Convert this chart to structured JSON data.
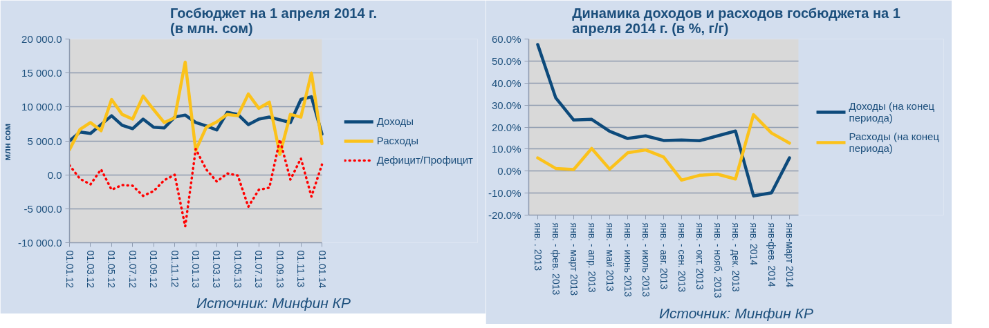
{
  "chart_data": [
    {
      "type": "line",
      "title": "Госбюджет на 1 апреля 2014 г. (в млн. сом)",
      "ylabel": "млн  сом",
      "categories": [
        "01.01.12",
        null,
        "01.03.12",
        null,
        "01.05.12",
        null,
        "01.07.12",
        null,
        "01.09.12",
        null,
        "01.11.12",
        null,
        "01.01.13",
        null,
        "01.03.13",
        null,
        "01.05.13",
        null,
        "01.07.13",
        null,
        "01.09.13",
        null,
        "01.11.13",
        null,
        "01.01.14"
      ],
      "ylim": [
        -10000,
        20000
      ],
      "yticks": [
        {
          "value": -10000,
          "label": "-10 000.0"
        },
        {
          "value": -5000,
          "label": "-5 000.0"
        },
        {
          "value": 0,
          "label": "0.0"
        },
        {
          "value": 5000,
          "label": "5 000.0"
        },
        {
          "value": 10000,
          "label": "10 000.0"
        },
        {
          "value": 15000,
          "label": "15 000.0"
        },
        {
          "value": 20000,
          "label": "20 000.0"
        }
      ],
      "grid": "y",
      "legend": "right",
      "series": [
        {
          "name": "Доходы",
          "color": "#0d4a7b",
          "values": [
            5000,
            6300,
            6100,
            7400,
            8700,
            7300,
            6800,
            8200,
            7000,
            6900,
            8500,
            8800,
            7700,
            7200,
            6600,
            9200,
            8900,
            7400,
            8200,
            8500,
            8100,
            7700,
            11100,
            11500,
            6000
          ]
        },
        {
          "name": "Расходы",
          "color": "#fbc21b",
          "values": [
            3700,
            6700,
            7700,
            6500,
            11100,
            8900,
            8200,
            11600,
            9600,
            7700,
            8400,
            16600,
            3600,
            7000,
            7800,
            8900,
            8700,
            11900,
            9800,
            10700,
            3000,
            8900,
            8500,
            15000,
            4600
          ]
        },
        {
          "name": "Дефицит/Профицит",
          "color": "#ff0000",
          "line_style": "dotted",
          "values": [
            1400,
            -600,
            -1400,
            800,
            -2200,
            -1500,
            -1600,
            -3100,
            -2400,
            -800,
            0,
            -7600,
            3800,
            800,
            -1000,
            200,
            -100,
            -4700,
            -2200,
            -1900,
            5200,
            -700,
            2400,
            -3200,
            1500
          ]
        }
      ],
      "annotations": [
        "Источник: Минфин КР"
      ]
    },
    {
      "type": "line",
      "title": "Динамика доходов и расходов госбюджета на 1 апреля 2014 г. (в %, г/г)",
      "categories": [
        "янв. . 2013",
        "янв. - фев. 2013",
        "янв. - март 2013",
        "янв. - апр. 2013",
        "янв. - май 2013",
        "янв. - июнь 2013",
        "янв. - июль 2013",
        "янв. - авг. 2013",
        "янв. - сен. 2013",
        "янв. - окт. 2013",
        "янв. - нояб. 2013",
        "янв. - дек. 2013",
        "янв. 2014",
        "янв-фев. 2014",
        "янв-март 2014"
      ],
      "ylim": [
        -20,
        60
      ],
      "yticks": [
        {
          "value": -20,
          "label": "-20.0%"
        },
        {
          "value": -10,
          "label": "-10.0%"
        },
        {
          "value": 0,
          "label": "0.0%"
        },
        {
          "value": 10,
          "label": "10.0%"
        },
        {
          "value": 20,
          "label": "20.0%"
        },
        {
          "value": 30,
          "label": "30.0%"
        },
        {
          "value": 40,
          "label": "40.0%"
        },
        {
          "value": 50,
          "label": "50.0%"
        },
        {
          "value": 60,
          "label": "60.0%"
        }
      ],
      "grid": "y",
      "legend": "right",
      "series": [
        {
          "name": "Доходы (на конец периода)",
          "color": "#0d4a7b",
          "values": [
            57.5,
            33.3,
            23.2,
            23.5,
            18.1,
            14.8,
            16.0,
            13.9,
            14.1,
            13.8,
            16.0,
            18.2,
            -11.3,
            -9.9,
            6.0
          ]
        },
        {
          "name": "Расходы (на конец периода)",
          "color": "#fbc21b",
          "values": [
            6.0,
            1.2,
            0.7,
            10.3,
            0.9,
            8.3,
            9.6,
            6.4,
            -4.1,
            -1.9,
            -1.4,
            -3.6,
            25.6,
            17.3,
            12.7
          ]
        }
      ],
      "annotations": [
        "Источник: Минфин КР"
      ]
    }
  ]
}
